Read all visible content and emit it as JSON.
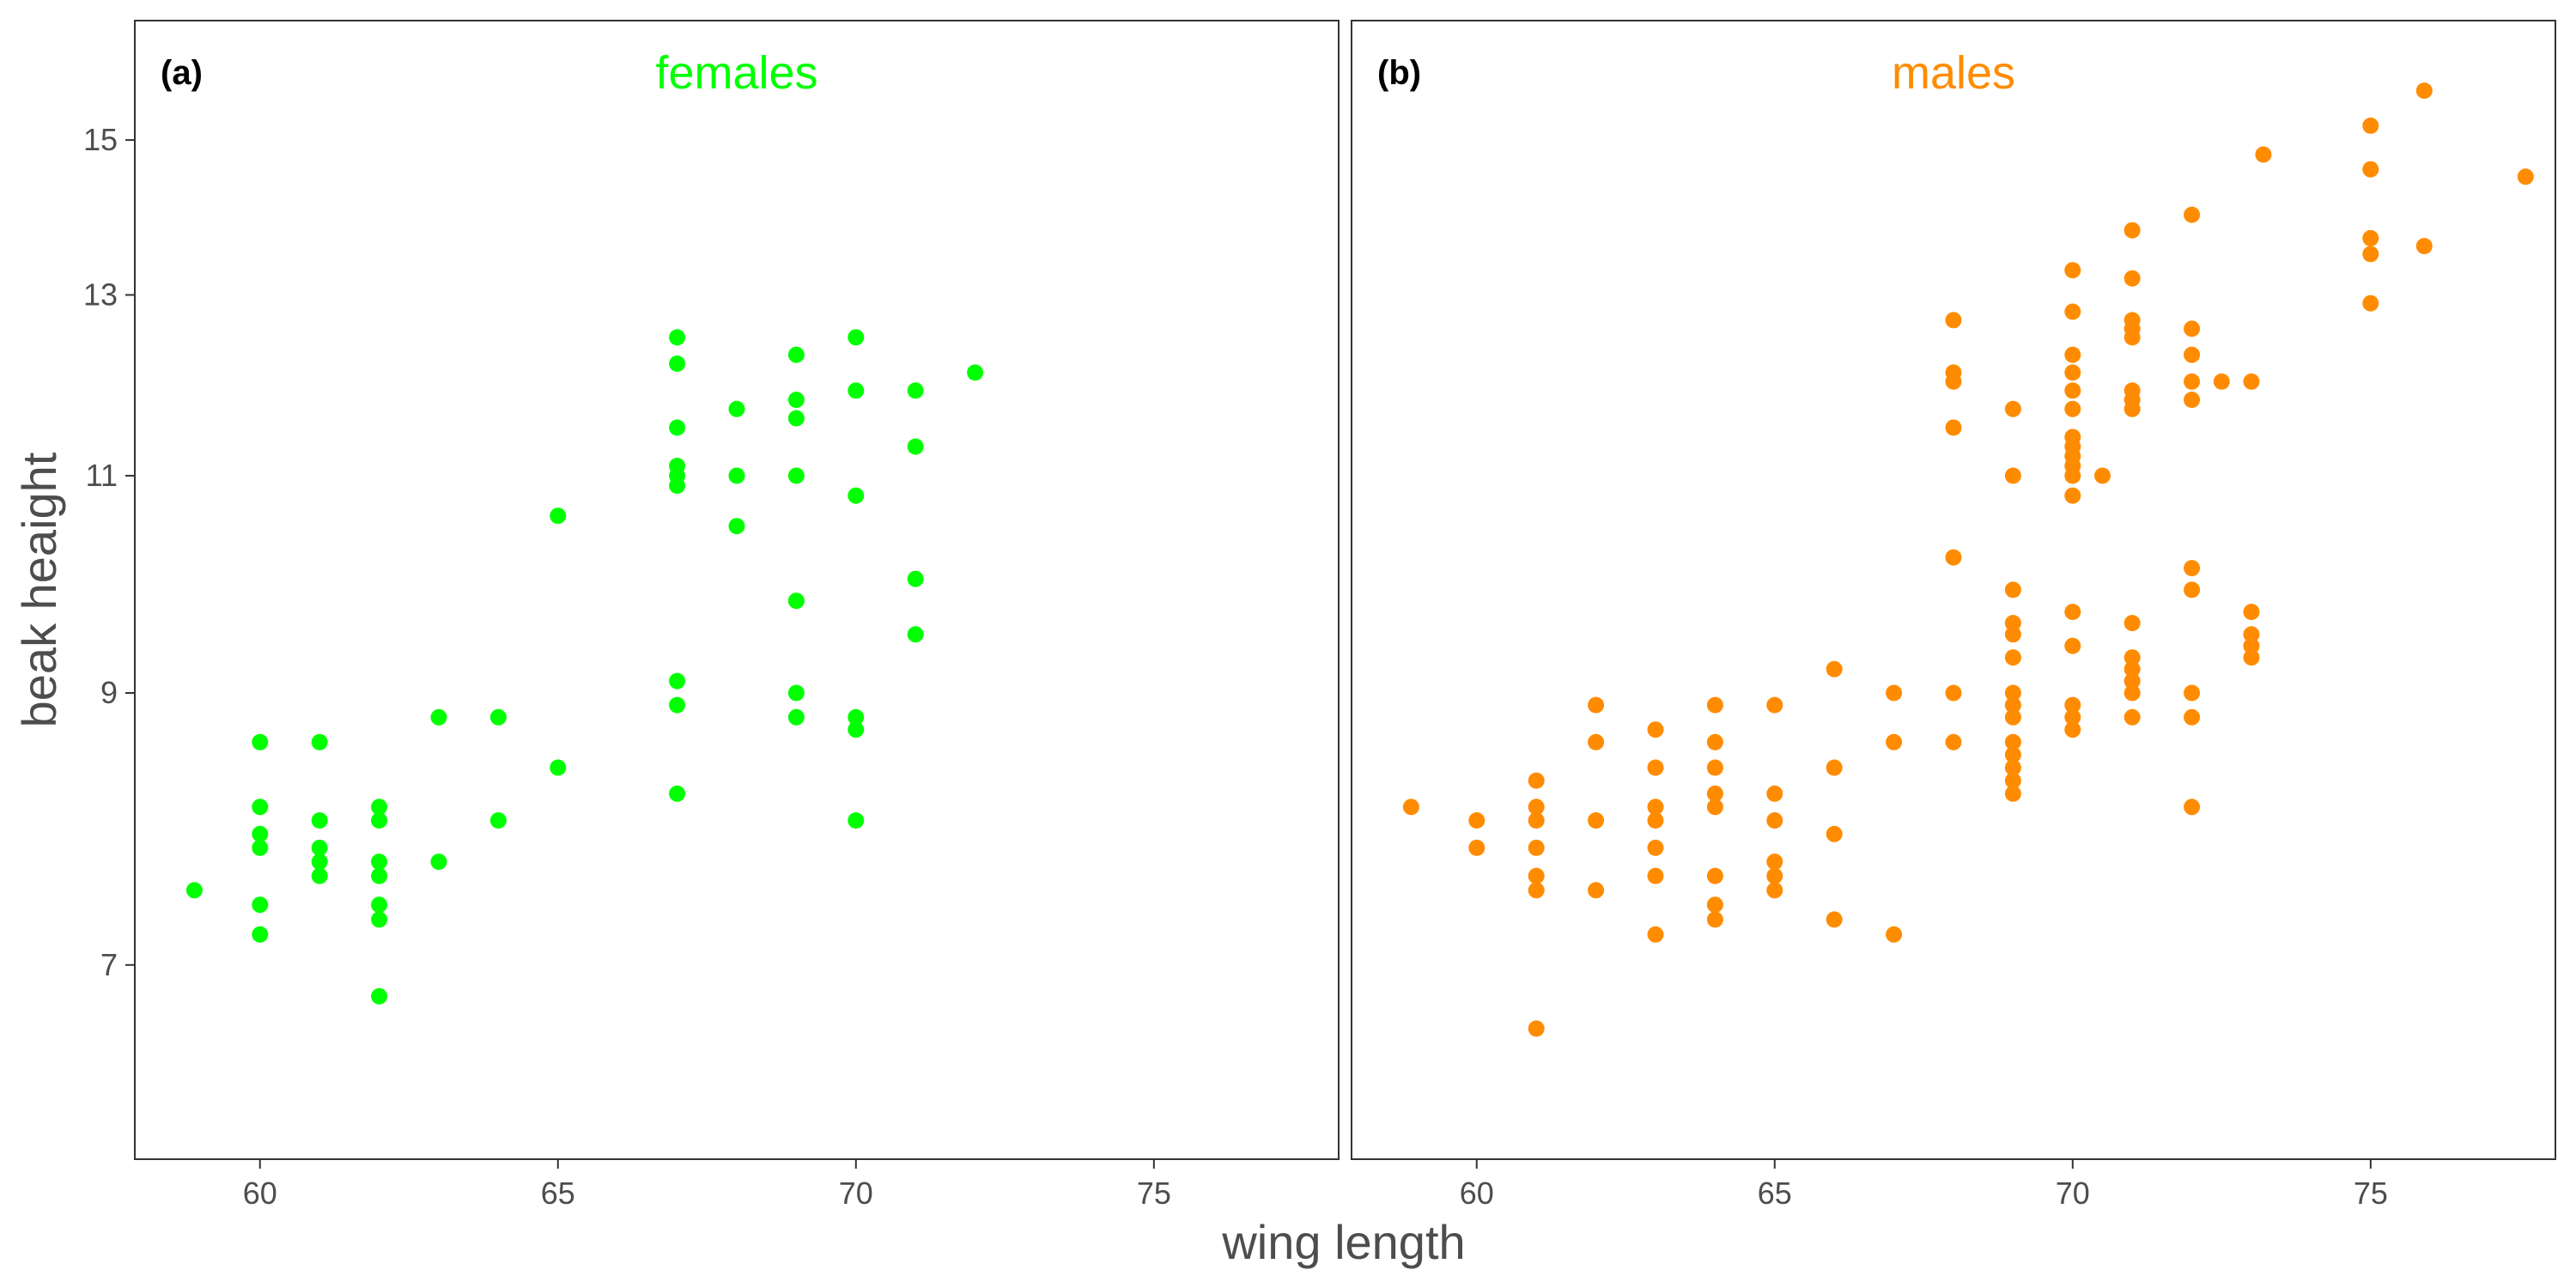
{
  "chart_data": {
    "type": "scatter",
    "xlabel": "wing length",
    "ylabel": "beak heaight",
    "ylim": [
      5.85,
      16.75
    ],
    "y_scale": "log",
    "y_ticks": [
      7,
      9,
      11,
      13,
      15
    ],
    "grid": false,
    "panels": [
      {
        "tag": "(a)",
        "title": "females",
        "color": "#00ff00",
        "xlim": [
          57.9,
          78.1
        ],
        "x_ticks": [
          60,
          65,
          70,
          75
        ],
        "points": [
          [
            58.9,
            7.5
          ],
          [
            60,
            8.6
          ],
          [
            60,
            8.1
          ],
          [
            60,
            7.9
          ],
          [
            60,
            7.8
          ],
          [
            60,
            7.4
          ],
          [
            60,
            7.2
          ],
          [
            61,
            8.6
          ],
          [
            61,
            8.0
          ],
          [
            61,
            7.8
          ],
          [
            61,
            7.7
          ],
          [
            61,
            7.6
          ],
          [
            62,
            8.1
          ],
          [
            62,
            8.0
          ],
          [
            62,
            7.7
          ],
          [
            62,
            7.6
          ],
          [
            62,
            7.4
          ],
          [
            62,
            7.3
          ],
          [
            62,
            6.8
          ],
          [
            63,
            8.8
          ],
          [
            63,
            7.7
          ],
          [
            64,
            8.8
          ],
          [
            64,
            8.0
          ],
          [
            65,
            10.6
          ],
          [
            65,
            8.4
          ],
          [
            67,
            12.5
          ],
          [
            67,
            12.2
          ],
          [
            67,
            11.5
          ],
          [
            67,
            11.1
          ],
          [
            67,
            11.0
          ],
          [
            67,
            10.9
          ],
          [
            67,
            9.1
          ],
          [
            67,
            8.9
          ],
          [
            67,
            8.2
          ],
          [
            68,
            11.7
          ],
          [
            68,
            11.0
          ],
          [
            68,
            10.5
          ],
          [
            69,
            12.3
          ],
          [
            69,
            11.8
          ],
          [
            69,
            11.6
          ],
          [
            69,
            11.0
          ],
          [
            69,
            9.8
          ],
          [
            69,
            9.0
          ],
          [
            69,
            8.8
          ],
          [
            70,
            12.5
          ],
          [
            70,
            11.9
          ],
          [
            70,
            10.8
          ],
          [
            70,
            8.8
          ],
          [
            70,
            8.7
          ],
          [
            70,
            8.0
          ],
          [
            71,
            11.9
          ],
          [
            71,
            11.3
          ],
          [
            71,
            10.0
          ],
          [
            71,
            9.5
          ],
          [
            72,
            12.1
          ]
        ]
      },
      {
        "tag": "(b)",
        "title": "males",
        "color": "#ff8c00",
        "xlim": [
          57.9,
          78.1
        ],
        "x_ticks": [
          60,
          65,
          70,
          75
        ],
        "points": [
          [
            58.9,
            8.1
          ],
          [
            60,
            8.0
          ],
          [
            60,
            7.8
          ],
          [
            61,
            8.3
          ],
          [
            61,
            8.1
          ],
          [
            61,
            8.0
          ],
          [
            61,
            7.8
          ],
          [
            61,
            7.6
          ],
          [
            61,
            7.5
          ],
          [
            61,
            6.6
          ],
          [
            62,
            8.9
          ],
          [
            62,
            8.6
          ],
          [
            62,
            8.0
          ],
          [
            62,
            7.5
          ],
          [
            63,
            8.7
          ],
          [
            63,
            8.4
          ],
          [
            63,
            8.1
          ],
          [
            63,
            8.0
          ],
          [
            63,
            7.8
          ],
          [
            63,
            7.6
          ],
          [
            63,
            7.2
          ],
          [
            64,
            8.9
          ],
          [
            64,
            8.6
          ],
          [
            64,
            8.4
          ],
          [
            64,
            8.2
          ],
          [
            64,
            8.1
          ],
          [
            64,
            7.6
          ],
          [
            64,
            7.4
          ],
          [
            64,
            7.3
          ],
          [
            65,
            8.9
          ],
          [
            65,
            8.2
          ],
          [
            65,
            8.0
          ],
          [
            65,
            7.7
          ],
          [
            65,
            7.6
          ],
          [
            65,
            7.5
          ],
          [
            66,
            9.2
          ],
          [
            66,
            8.4
          ],
          [
            66,
            7.9
          ],
          [
            66,
            7.3
          ],
          [
            67,
            9.0
          ],
          [
            67,
            8.6
          ],
          [
            67,
            7.2
          ],
          [
            68,
            12.7
          ],
          [
            68,
            12.1
          ],
          [
            68,
            12.0
          ],
          [
            68,
            11.5
          ],
          [
            68,
            10.2
          ],
          [
            68,
            9.0
          ],
          [
            68,
            8.6
          ],
          [
            69,
            11.7
          ],
          [
            69,
            11.0
          ],
          [
            69,
            9.9
          ],
          [
            69,
            9.6
          ],
          [
            69,
            9.5
          ],
          [
            69,
            9.3
          ],
          [
            69,
            9.0
          ],
          [
            69,
            8.9
          ],
          [
            69,
            8.8
          ],
          [
            69,
            8.6
          ],
          [
            69,
            8.5
          ],
          [
            69,
            8.4
          ],
          [
            69,
            8.3
          ],
          [
            69,
            8.2
          ],
          [
            70,
            13.3
          ],
          [
            70,
            12.8
          ],
          [
            70,
            12.3
          ],
          [
            70,
            12.1
          ],
          [
            70,
            11.9
          ],
          [
            70,
            11.7
          ],
          [
            70,
            11.4
          ],
          [
            70,
            11.3
          ],
          [
            70,
            11.2
          ],
          [
            70,
            11.1
          ],
          [
            70,
            11.0
          ],
          [
            70,
            10.8
          ],
          [
            70,
            9.7
          ],
          [
            70,
            9.4
          ],
          [
            70,
            8.9
          ],
          [
            70,
            8.8
          ],
          [
            70,
            8.7
          ],
          [
            70.5,
            11.0
          ],
          [
            71,
            13.8
          ],
          [
            71,
            13.2
          ],
          [
            71,
            12.7
          ],
          [
            71,
            12.6
          ],
          [
            71,
            12.5
          ],
          [
            71,
            11.9
          ],
          [
            71,
            11.8
          ],
          [
            71,
            11.7
          ],
          [
            71,
            9.6
          ],
          [
            71,
            9.3
          ],
          [
            71,
            9.2
          ],
          [
            71,
            9.1
          ],
          [
            71,
            9.0
          ],
          [
            71,
            8.8
          ],
          [
            72,
            14.0
          ],
          [
            72,
            12.6
          ],
          [
            72,
            12.3
          ],
          [
            72,
            12.0
          ],
          [
            72,
            11.8
          ],
          [
            72,
            10.1
          ],
          [
            72,
            9.9
          ],
          [
            72,
            9.0
          ],
          [
            72,
            8.8
          ],
          [
            72,
            8.1
          ],
          [
            72.5,
            12.0
          ],
          [
            73,
            12.0
          ],
          [
            73,
            9.7
          ],
          [
            73,
            9.5
          ],
          [
            73,
            9.4
          ],
          [
            73,
            9.3
          ],
          [
            73.2,
            14.8
          ],
          [
            75,
            15.2
          ],
          [
            75,
            14.6
          ],
          [
            75,
            13.7
          ],
          [
            75,
            13.5
          ],
          [
            75,
            12.9
          ],
          [
            75.9,
            15.7
          ],
          [
            75.9,
            13.6
          ],
          [
            77.6,
            14.5
          ]
        ]
      }
    ]
  }
}
